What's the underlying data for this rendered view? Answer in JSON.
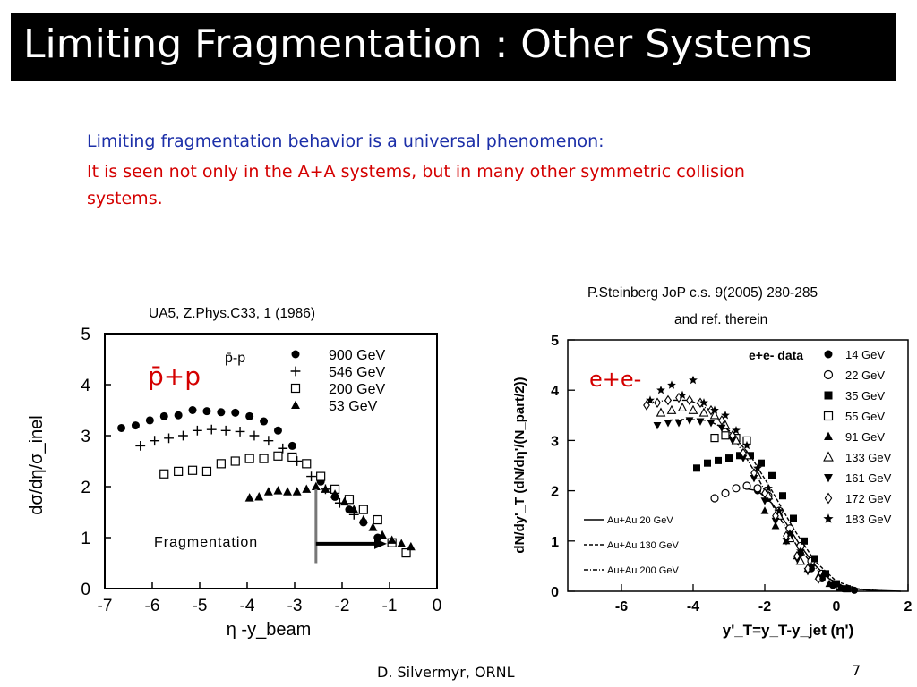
{
  "slide": {
    "title": "Limiting Fragmentation : Other Systems",
    "line1": "Limiting fragmentation behavior is a universal phenomenon:",
    "line2": "It is seen not only in the A+A systems, but in many other symmetric collision systems.",
    "footer_author": "D. Silvermyr, ORNL",
    "page_number": "7",
    "colors": {
      "title_bg": "#000000",
      "blue_text": "#1c2fa8",
      "red_text": "#d40000"
    }
  },
  "left_caption": "UA5, Z.Phys.C33, 1 (1986)",
  "right_caption_1": "P.Steinberg JoP c.s. 9(2005) 280-285",
  "right_caption_2": "and ref. therein",
  "chart_data": [
    {
      "type": "scatter",
      "title": "",
      "system_label": "p̄+p",
      "xlabel": "η -y_beam",
      "ylabel": "dσ/dη/σ_inel",
      "xlim": [
        -7,
        0
      ],
      "ylim": [
        0,
        5
      ],
      "xticks": [
        "-7",
        "-6",
        "-5",
        "-4",
        "-3",
        "-2",
        "-1",
        "0"
      ],
      "yticks": [
        "0",
        "1",
        "2",
        "3",
        "4",
        "5"
      ],
      "legend_title": "p̄-p",
      "legend_position": "top-right",
      "annotation": "Fragmentation",
      "marker_line_x": -2.55,
      "series": [
        {
          "name": "900 GeV",
          "marker": "filled-circle",
          "x": [
            -6.65,
            -6.35,
            -6.05,
            -5.75,
            -5.45,
            -5.15,
            -4.85,
            -4.55,
            -4.25,
            -3.95,
            -3.65,
            -3.35,
            -3.05,
            -2.75,
            -2.45,
            -2.15,
            -1.85,
            -1.55,
            -1.25
          ],
          "y": [
            3.15,
            3.2,
            3.3,
            3.38,
            3.4,
            3.5,
            3.48,
            3.46,
            3.45,
            3.38,
            3.28,
            3.1,
            2.8,
            2.45,
            2.1,
            1.8,
            1.55,
            1.3,
            1.0
          ]
        },
        {
          "name": "546 GeV",
          "marker": "plus",
          "x": [
            -6.25,
            -5.95,
            -5.65,
            -5.35,
            -5.05,
            -4.75,
            -4.45,
            -4.15,
            -3.85,
            -3.55,
            -3.25,
            -2.95,
            -2.65,
            -2.35,
            -2.05,
            -1.75
          ],
          "y": [
            2.8,
            2.9,
            2.95,
            3.0,
            3.1,
            3.12,
            3.1,
            3.08,
            3.0,
            2.9,
            2.75,
            2.5,
            2.2,
            1.95,
            1.68,
            1.45
          ]
        },
        {
          "name": "200 GeV",
          "marker": "open-square",
          "x": [
            -5.75,
            -5.45,
            -5.15,
            -4.85,
            -4.55,
            -4.25,
            -3.95,
            -3.65,
            -3.35,
            -3.05,
            -2.75,
            -2.45,
            -2.15,
            -1.85,
            -1.55,
            -1.25,
            -0.95,
            -0.65
          ],
          "y": [
            2.25,
            2.3,
            2.32,
            2.3,
            2.45,
            2.5,
            2.55,
            2.55,
            2.6,
            2.58,
            2.45,
            2.2,
            1.95,
            1.75,
            1.55,
            1.35,
            0.9,
            0.7
          ]
        },
        {
          "name": "53 GeV",
          "marker": "filled-triangle",
          "x": [
            -3.95,
            -3.75,
            -3.55,
            -3.35,
            -3.15,
            -2.95,
            -2.75,
            -2.55,
            -2.35,
            -2.15,
            -1.95,
            -1.75,
            -1.55,
            -1.35,
            -1.15,
            -0.95,
            -0.75,
            -0.55
          ],
          "y": [
            1.78,
            1.8,
            1.9,
            1.92,
            1.9,
            1.9,
            1.95,
            2.0,
            1.95,
            1.85,
            1.7,
            1.55,
            1.35,
            1.2,
            1.05,
            0.95,
            0.88,
            0.82
          ]
        }
      ]
    },
    {
      "type": "scatter",
      "title": "",
      "system_label": "e+e-",
      "xlabel": "y'_T=y_T-y_jet (η')",
      "ylabel": "dN/dy'_T (dN/dη'/(N_part/2))",
      "xlim": [
        -7.5,
        2
      ],
      "ylim": [
        0,
        5
      ],
      "xticks": [
        "-6",
        "-4",
        "-2",
        "0",
        "2"
      ],
      "yticks": [
        "0",
        "1",
        "2",
        "3",
        "4",
        "5"
      ],
      "legend_title": "e+e- data",
      "legend_position": "top-right",
      "series": [
        {
          "name": "14 GeV",
          "marker": "filled-circle",
          "x": [
            -2.2,
            -1.9,
            -1.6,
            -1.3,
            -1.0,
            -0.7,
            -0.4,
            -0.1,
            0.2,
            0.5
          ],
          "y": [
            2.0,
            1.85,
            1.5,
            1.1,
            0.75,
            0.45,
            0.25,
            0.12,
            0.05,
            0.02
          ]
        },
        {
          "name": "22 GeV",
          "marker": "open-circle",
          "x": [
            -3.4,
            -3.1,
            -2.8,
            -2.5,
            -2.2,
            -1.9,
            -1.6,
            -1.3,
            -1.0,
            -0.7,
            -0.4
          ],
          "y": [
            1.85,
            1.95,
            2.05,
            2.1,
            2.05,
            1.9,
            1.6,
            1.25,
            0.9,
            0.6,
            0.35
          ]
        },
        {
          "name": "35 GeV",
          "marker": "filled-square",
          "x": [
            -3.9,
            -3.6,
            -3.3,
            -3.0,
            -2.7,
            -2.4,
            -2.1,
            -1.8,
            -1.5,
            -1.2,
            -0.9,
            -0.6,
            -0.3,
            0.0,
            0.3
          ],
          "y": [
            2.45,
            2.55,
            2.6,
            2.65,
            2.7,
            2.7,
            2.55,
            2.3,
            1.9,
            1.45,
            1.0,
            0.65,
            0.35,
            0.15,
            0.05
          ]
        },
        {
          "name": "55 GeV",
          "marker": "open-square",
          "x": [
            -3.4,
            -3.1,
            -2.8,
            -2.5
          ],
          "y": [
            3.05,
            3.1,
            3.05,
            3.0
          ]
        },
        {
          "name": "91 GeV",
          "marker": "filled-triangle",
          "x": [
            -2.0,
            -1.7,
            -1.4,
            -1.1,
            -0.8,
            -0.5,
            -0.2,
            0.1
          ],
          "y": [
            1.6,
            1.3,
            1.0,
            0.7,
            0.45,
            0.3,
            0.15,
            0.06
          ]
        },
        {
          "name": "133 GeV",
          "marker": "open-triangle",
          "x": [
            -4.9,
            -4.6,
            -4.3,
            -4.0,
            -3.7,
            -3.4,
            -3.1,
            -2.8,
            -2.5,
            -2.2,
            -1.9,
            -1.6,
            -1.3,
            -1.0
          ],
          "y": [
            3.55,
            3.6,
            3.65,
            3.6,
            3.55,
            3.5,
            3.3,
            3.0,
            2.7,
            2.3,
            1.9,
            1.5,
            1.05,
            0.6
          ]
        },
        {
          "name": "161 GeV",
          "marker": "filled-triangle-down",
          "x": [
            -5.0,
            -4.7,
            -4.4,
            -4.1,
            -3.8,
            -3.5,
            -3.2,
            -2.9,
            -2.6,
            -2.3,
            -2.0,
            -1.7,
            -1.4,
            -1.1,
            -0.8
          ],
          "y": [
            3.3,
            3.35,
            3.35,
            3.4,
            3.38,
            3.35,
            3.25,
            3.0,
            2.65,
            2.25,
            1.8,
            1.4,
            1.0,
            0.65,
            0.4
          ]
        },
        {
          "name": "172 GeV",
          "marker": "open-diamond",
          "x": [
            -5.3,
            -5.0,
            -4.7,
            -4.4,
            -4.1,
            -3.8,
            -3.5,
            -3.2,
            -2.9,
            -2.6,
            -2.3,
            -2.0,
            -1.7,
            -1.4,
            -1.1,
            -0.8,
            -0.5
          ],
          "y": [
            3.7,
            3.75,
            3.8,
            3.85,
            3.8,
            3.75,
            3.6,
            3.4,
            3.1,
            2.75,
            2.35,
            1.95,
            1.5,
            1.1,
            0.7,
            0.45,
            0.25
          ]
        },
        {
          "name": "183 GeV",
          "marker": "star",
          "x": [
            -5.2,
            -4.9,
            -4.6,
            -4.3,
            -4.0,
            -3.7,
            -3.4,
            -3.1,
            -2.8,
            -2.5,
            -2.2,
            -1.9,
            -1.6,
            -1.3,
            -1.0,
            -0.7,
            -0.4,
            -0.1
          ],
          "y": [
            3.8,
            4.0,
            4.1,
            3.9,
            4.2,
            3.75,
            3.6,
            3.5,
            3.2,
            2.9,
            2.45,
            2.05,
            1.6,
            1.15,
            0.8,
            0.5,
            0.3,
            0.15
          ]
        }
      ],
      "curves": [
        {
          "name": "Au+Au 20 GeV",
          "style": "solid",
          "x": [
            -2.6,
            -2.2,
            -1.8,
            -1.4,
            -1.0,
            -0.6,
            -0.2,
            0.2,
            0.6,
            1.0,
            1.4,
            1.8
          ],
          "y": [
            2.05,
            2.0,
            1.75,
            1.35,
            0.9,
            0.52,
            0.25,
            0.1,
            0.04,
            0.02,
            0.01,
            0.0
          ]
        },
        {
          "name": "Au+Au 130 GeV",
          "style": "dashed",
          "x": [
            -4.8,
            -4.2,
            -3.6,
            -3.0,
            -2.4,
            -1.8,
            -1.2,
            -0.6,
            0.0,
            0.6,
            1.2
          ],
          "y": [
            3.4,
            3.42,
            3.4,
            3.2,
            2.7,
            2.0,
            1.25,
            0.6,
            0.2,
            0.05,
            0.01
          ]
        },
        {
          "name": "Au+Au 200 GeV",
          "style": "dash-dot",
          "x": [
            -5.3,
            -4.7,
            -4.1,
            -3.5,
            -2.9,
            -2.3,
            -1.7,
            -1.1,
            -0.5,
            0.1,
            0.7,
            1.3
          ],
          "y": [
            3.75,
            3.8,
            3.8,
            3.6,
            3.1,
            2.4,
            1.6,
            0.9,
            0.4,
            0.12,
            0.03,
            0.01
          ]
        }
      ]
    }
  ]
}
